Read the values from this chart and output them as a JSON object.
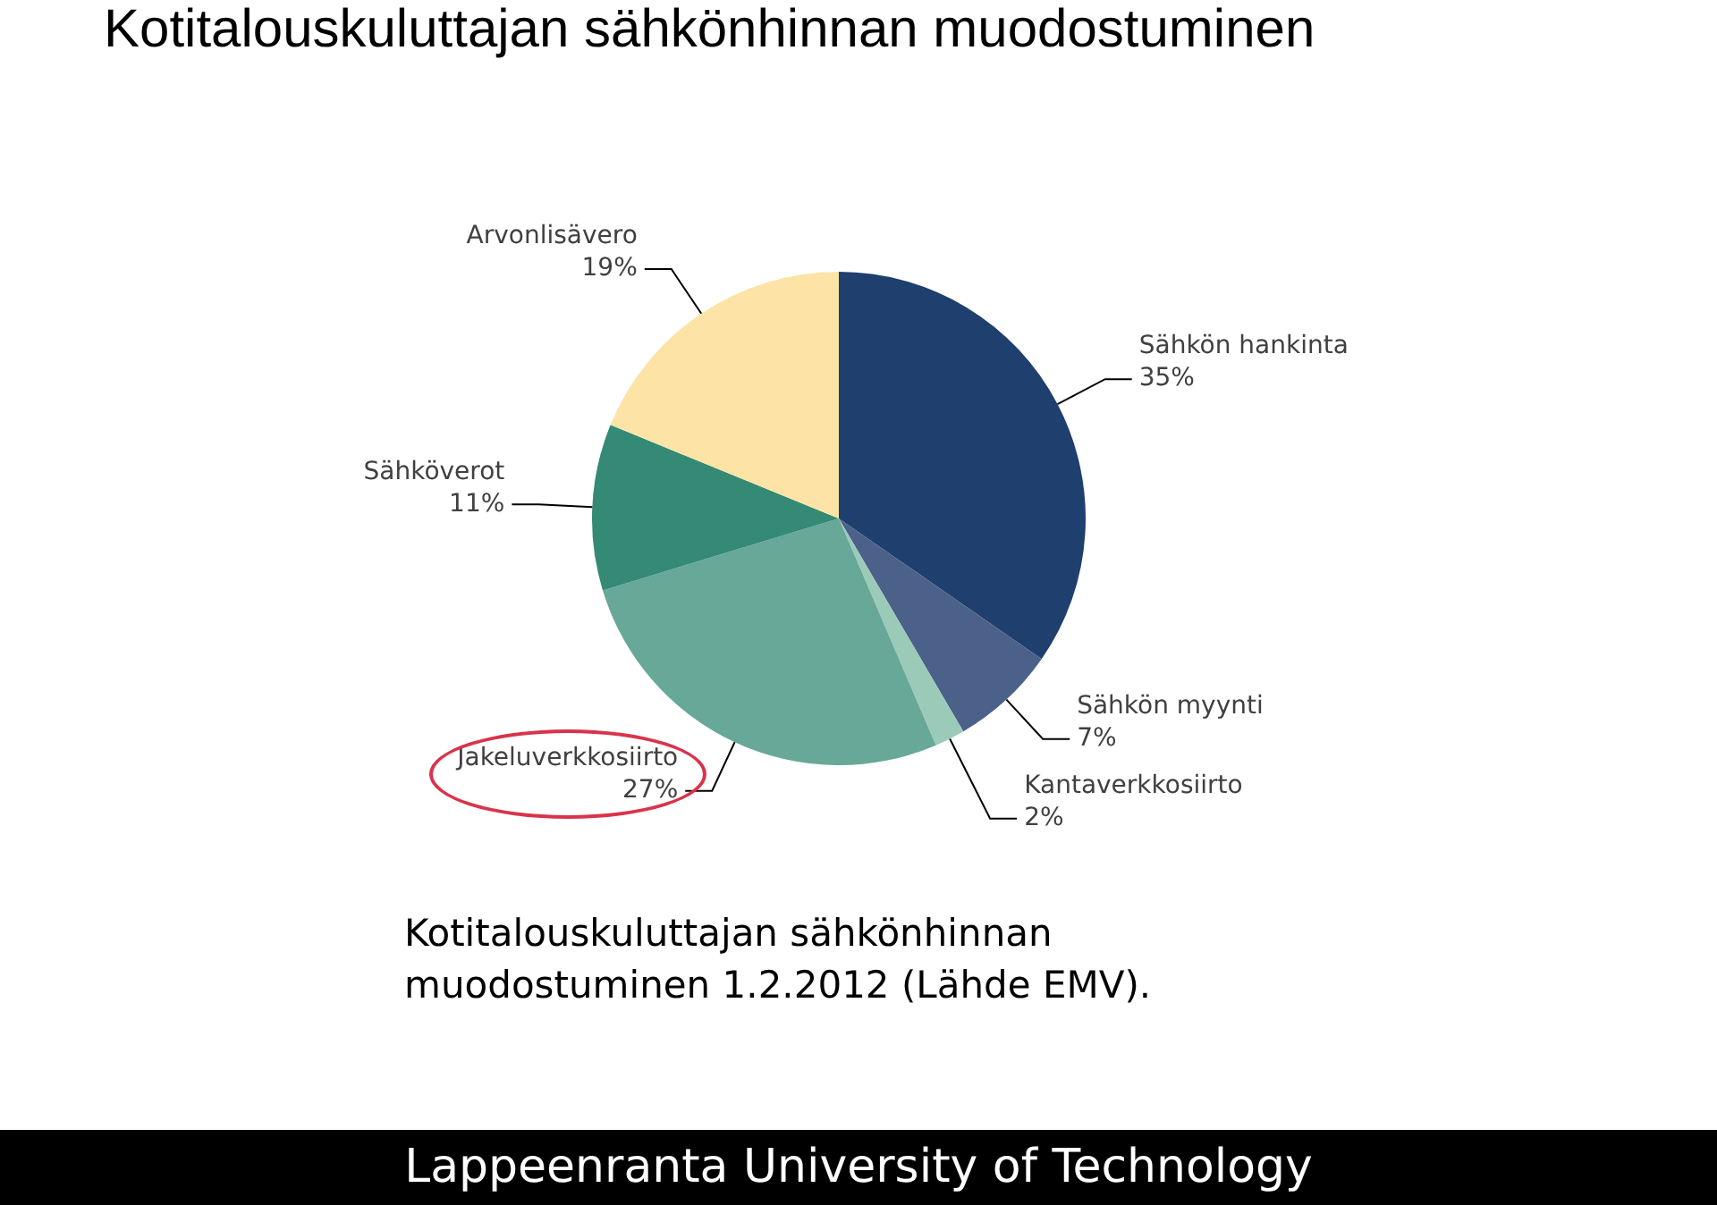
{
  "chart_data": {
    "type": "pie",
    "title": "Kotitalouskuluttajan sähkönhinnan muodostuminen",
    "categories": [
      "Sähkön hankinta",
      "Sähkön myynti",
      "Kantaverkkosiirto",
      "Jakeluverkkosiirto",
      "Sähköverot",
      "Arvonlisävero"
    ],
    "values": [
      35,
      7,
      2,
      27,
      11,
      19
    ],
    "value_labels": [
      "35%",
      "7%",
      "2%",
      "27%",
      "11%",
      "19%"
    ],
    "colors": [
      "#1f3f6e",
      "#4b6189",
      "#9ccab9",
      "#67a898",
      "#348a74",
      "#fde4a6"
    ],
    "legend": false,
    "annotations": [
      "Kotitalouskuluttajan sähkönhinnan muodostuminen 1.2.2012 (Lähde EMV).",
      "Lappeenranta University of Technology"
    ]
  }
}
